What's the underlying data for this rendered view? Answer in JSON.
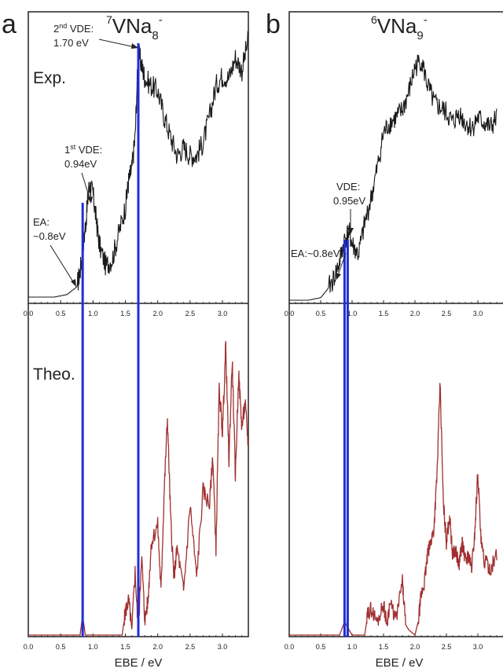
{
  "panels": [
    {
      "letter": "a",
      "title": {
        "main": "VNa",
        "iso": "7",
        "sub": "8",
        "sup": "-"
      },
      "exp_label": "Exp.",
      "theo_label": "Theo.",
      "x_ticks": [
        "0.0",
        "0.5",
        "1.0",
        "1.5",
        "2.0",
        "2.5",
        "3.0"
      ],
      "xlabel": "EBE / eV",
      "annotations": {
        "vde2_a": "2",
        "vde2_sup": "nd",
        "vde2_b": " VDE:",
        "vde2_value": "1.70 eV",
        "vde1_a": "1",
        "vde1_sup": "st",
        "vde1_b": " VDE:",
        "vde1_value": "0.94eV",
        "ea_line1": "EA:",
        "ea_line2": "~0.8eV"
      }
    },
    {
      "letter": "b",
      "title": {
        "main": "VNa",
        "iso": "6",
        "sub": "9",
        "sup": "-"
      },
      "x_ticks": [
        "0.0",
        "0.5",
        "1.0",
        "1.5",
        "2.0",
        "2.5",
        "3.0"
      ],
      "xlabel": "EBE / eV",
      "annotations": {
        "vde_line1": "VDE:",
        "vde_value": "0.95eV",
        "ea": "EA:~0.8eV"
      }
    }
  ],
  "colors": {
    "experiment": "#1a1a1a",
    "theory": "#a03030",
    "marker": "#1f2fd6",
    "frame": "#222222"
  },
  "chart_data": [
    {
      "type": "line",
      "panel": "a",
      "xlim": [
        0.0,
        3.4
      ],
      "xlabel": "EBE / eV",
      "x_ticks": [
        0.0,
        0.5,
        1.0,
        1.5,
        2.0,
        2.5,
        3.0
      ],
      "markers_eV": [
        0.84,
        1.7
      ],
      "series": [
        {
          "name": "Exp.",
          "x": [
            0.0,
            0.4,
            0.6,
            0.75,
            0.8,
            0.85,
            0.9,
            0.94,
            1.0,
            1.05,
            1.1,
            1.2,
            1.3,
            1.4,
            1.5,
            1.55,
            1.6,
            1.65,
            1.7,
            1.75,
            1.8,
            1.9,
            2.0,
            2.1,
            2.2,
            2.3,
            2.4,
            2.5,
            2.6,
            2.7,
            2.8,
            2.9,
            3.0,
            3.1,
            3.2,
            3.3,
            3.4
          ],
          "y": [
            0.0,
            0.0,
            0.01,
            0.04,
            0.1,
            0.2,
            0.32,
            0.44,
            0.4,
            0.3,
            0.2,
            0.12,
            0.15,
            0.25,
            0.35,
            0.45,
            0.5,
            0.62,
            0.95,
            0.9,
            0.85,
            0.82,
            0.8,
            0.7,
            0.62,
            0.55,
            0.58,
            0.55,
            0.55,
            0.6,
            0.7,
            0.82,
            0.86,
            0.85,
            0.93,
            0.88,
            1.0
          ]
        },
        {
          "name": "Theo.",
          "x": [
            0.0,
            0.8,
            0.84,
            0.88,
            1.0,
            1.45,
            1.5,
            1.55,
            1.6,
            1.65,
            1.7,
            1.75,
            1.8,
            1.85,
            1.9,
            2.0,
            2.05,
            2.1,
            2.15,
            2.2,
            2.25,
            2.3,
            2.4,
            2.5,
            2.6,
            2.7,
            2.8,
            2.85,
            2.9,
            2.95,
            3.0,
            3.05,
            3.1,
            3.15,
            3.2,
            3.25,
            3.3,
            3.35,
            3.4
          ],
          "y": [
            0.0,
            0.0,
            0.07,
            0.0,
            0.0,
            0.0,
            0.08,
            0.12,
            0.02,
            0.22,
            0.0,
            0.28,
            0.05,
            0.12,
            0.32,
            0.38,
            0.15,
            0.5,
            0.75,
            0.4,
            0.2,
            0.3,
            0.15,
            0.45,
            0.2,
            0.5,
            0.45,
            0.62,
            0.3,
            0.85,
            0.7,
            1.0,
            0.6,
            0.95,
            0.55,
            0.9,
            0.72,
            0.8,
            0.65
          ]
        }
      ]
    },
    {
      "type": "line",
      "panel": "b",
      "xlim": [
        0.0,
        3.4
      ],
      "xlabel": "EBE / eV",
      "x_ticks": [
        0.0,
        0.5,
        1.0,
        1.5,
        2.0,
        2.5,
        3.0
      ],
      "markers_eV": [
        0.88,
        0.93
      ],
      "series": [
        {
          "name": "Exp.",
          "x": [
            0.0,
            0.3,
            0.5,
            0.6,
            0.7,
            0.8,
            0.88,
            0.95,
            1.0,
            1.1,
            1.2,
            1.3,
            1.4,
            1.5,
            1.6,
            1.7,
            1.8,
            1.9,
            2.0,
            2.1,
            2.2,
            2.3,
            2.4,
            2.5,
            2.6,
            2.7,
            2.8,
            2.9,
            3.0,
            3.1,
            3.2,
            3.3
          ],
          "y": [
            0.0,
            0.0,
            0.01,
            0.04,
            0.08,
            0.15,
            0.24,
            0.27,
            0.22,
            0.18,
            0.3,
            0.4,
            0.52,
            0.66,
            0.7,
            0.72,
            0.75,
            0.82,
            0.92,
            0.95,
            0.85,
            0.78,
            0.76,
            0.74,
            0.7,
            0.74,
            0.7,
            0.68,
            0.72,
            0.7,
            0.68,
            0.72
          ]
        },
        {
          "name": "Theo.",
          "x": [
            0.0,
            0.8,
            0.88,
            0.95,
            1.0,
            1.2,
            1.25,
            1.3,
            1.4,
            1.5,
            1.55,
            1.6,
            1.7,
            1.8,
            1.85,
            1.9,
            2.0,
            2.05,
            2.1,
            2.15,
            2.2,
            2.25,
            2.3,
            2.35,
            2.4,
            2.45,
            2.5,
            2.55,
            2.6,
            2.65,
            2.7,
            2.75,
            2.8,
            2.85,
            2.9,
            2.95,
            3.0,
            3.05,
            3.1,
            3.2,
            3.3
          ],
          "y": [
            0.0,
            0.0,
            0.05,
            0.02,
            0.0,
            0.0,
            0.08,
            0.1,
            0.05,
            0.12,
            0.04,
            0.12,
            0.06,
            0.2,
            0.04,
            0.02,
            0.0,
            0.05,
            0.15,
            0.2,
            0.3,
            0.35,
            0.4,
            0.6,
            0.95,
            0.5,
            0.35,
            0.45,
            0.3,
            0.32,
            0.26,
            0.35,
            0.28,
            0.3,
            0.25,
            0.38,
            0.62,
            0.35,
            0.28,
            0.25,
            0.3
          ]
        }
      ]
    }
  ]
}
